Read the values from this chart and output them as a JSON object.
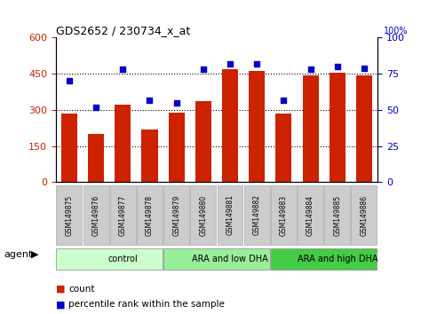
{
  "title": "GDS2652 / 230734_x_at",
  "samples": [
    "GSM149875",
    "GSM149876",
    "GSM149877",
    "GSM149878",
    "GSM149879",
    "GSM149880",
    "GSM149881",
    "GSM149882",
    "GSM149883",
    "GSM149884",
    "GSM149885",
    "GSM149886"
  ],
  "bar_values": [
    285,
    200,
    320,
    220,
    290,
    335,
    470,
    460,
    285,
    445,
    455,
    445
  ],
  "dot_values": [
    70,
    52,
    78,
    57,
    55,
    78,
    82,
    82,
    57,
    78,
    80,
    79
  ],
  "bar_color": "#cc2200",
  "dot_color": "#0000cc",
  "groups": [
    {
      "label": "control",
      "start": 0,
      "end": 4,
      "color": "#ccffcc"
    },
    {
      "label": "ARA and low DHA",
      "start": 4,
      "end": 8,
      "color": "#99ee99"
    },
    {
      "label": "ARA and high DHA",
      "start": 8,
      "end": 12,
      "color": "#44cc44"
    }
  ],
  "ylim_left": [
    0,
    600
  ],
  "ylim_right": [
    0,
    100
  ],
  "yticks_left": [
    0,
    150,
    300,
    450,
    600
  ],
  "yticks_right": [
    0,
    25,
    50,
    75,
    100
  ],
  "grid_lines": [
    150,
    300,
    450
  ],
  "legend_count_label": "count",
  "legend_pct_label": "percentile rank within the sample",
  "xlabel_agent": "agent",
  "background_color": "#ffffff",
  "sample_box_color": "#cccccc",
  "sample_box_edge": "#aaaaaa"
}
